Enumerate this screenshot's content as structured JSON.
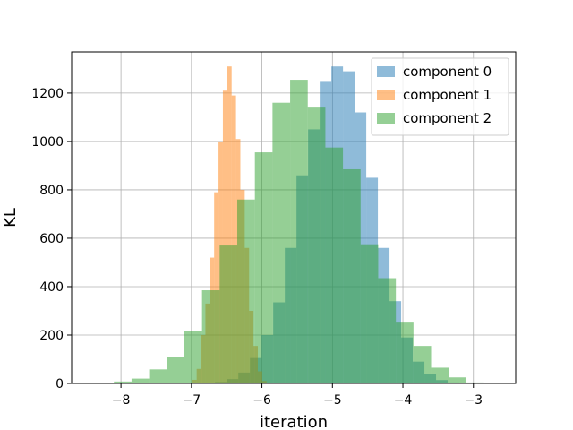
{
  "chart_data": {
    "type": "bar",
    "title": "",
    "xlabel": "iteration",
    "ylabel": "KL",
    "xlim": [
      -8.7,
      -2.4
    ],
    "ylim": [
      0,
      1370
    ],
    "xticks": [
      -8,
      -7,
      -6,
      -5,
      -4,
      -3
    ],
    "xtick_labels": [
      "−8",
      "−7",
      "−6",
      "−5",
      "−4",
      "−3"
    ],
    "yticks": [
      0,
      200,
      400,
      600,
      800,
      1000,
      1200
    ],
    "ytick_labels": [
      "0",
      "200",
      "400",
      "600",
      "800",
      "1000",
      "1200"
    ],
    "grid": true,
    "legend_position": "top-right",
    "series": [
      {
        "name": "component 0",
        "color": "#1f77b4",
        "alpha": 0.5,
        "bin_start": -6.83,
        "bin_width": 0.165,
        "values": [
          2,
          6,
          18,
          45,
          105,
          200,
          335,
          560,
          860,
          1050,
          1250,
          1310,
          1290,
          1120,
          850,
          560,
          340,
          190,
          90,
          40,
          14,
          4
        ]
      },
      {
        "name": "component 1",
        "color": "#ff7f0e",
        "alpha": 0.5,
        "bin_start": -7.05,
        "bin_width": 0.062,
        "values": [
          2,
          15,
          60,
          200,
          330,
          520,
          790,
          1000,
          1210,
          1310,
          1190,
          1010,
          800,
          560,
          300,
          155,
          50,
          10
        ]
      },
      {
        "name": "component 2",
        "color": "#2ca02c",
        "alpha": 0.5,
        "bin_start": -8.1,
        "bin_width": 0.25,
        "values": [
          8,
          20,
          58,
          110,
          215,
          385,
          570,
          760,
          955,
          1160,
          1255,
          1140,
          975,
          885,
          575,
          435,
          255,
          155,
          65,
          25,
          4
        ]
      }
    ]
  }
}
